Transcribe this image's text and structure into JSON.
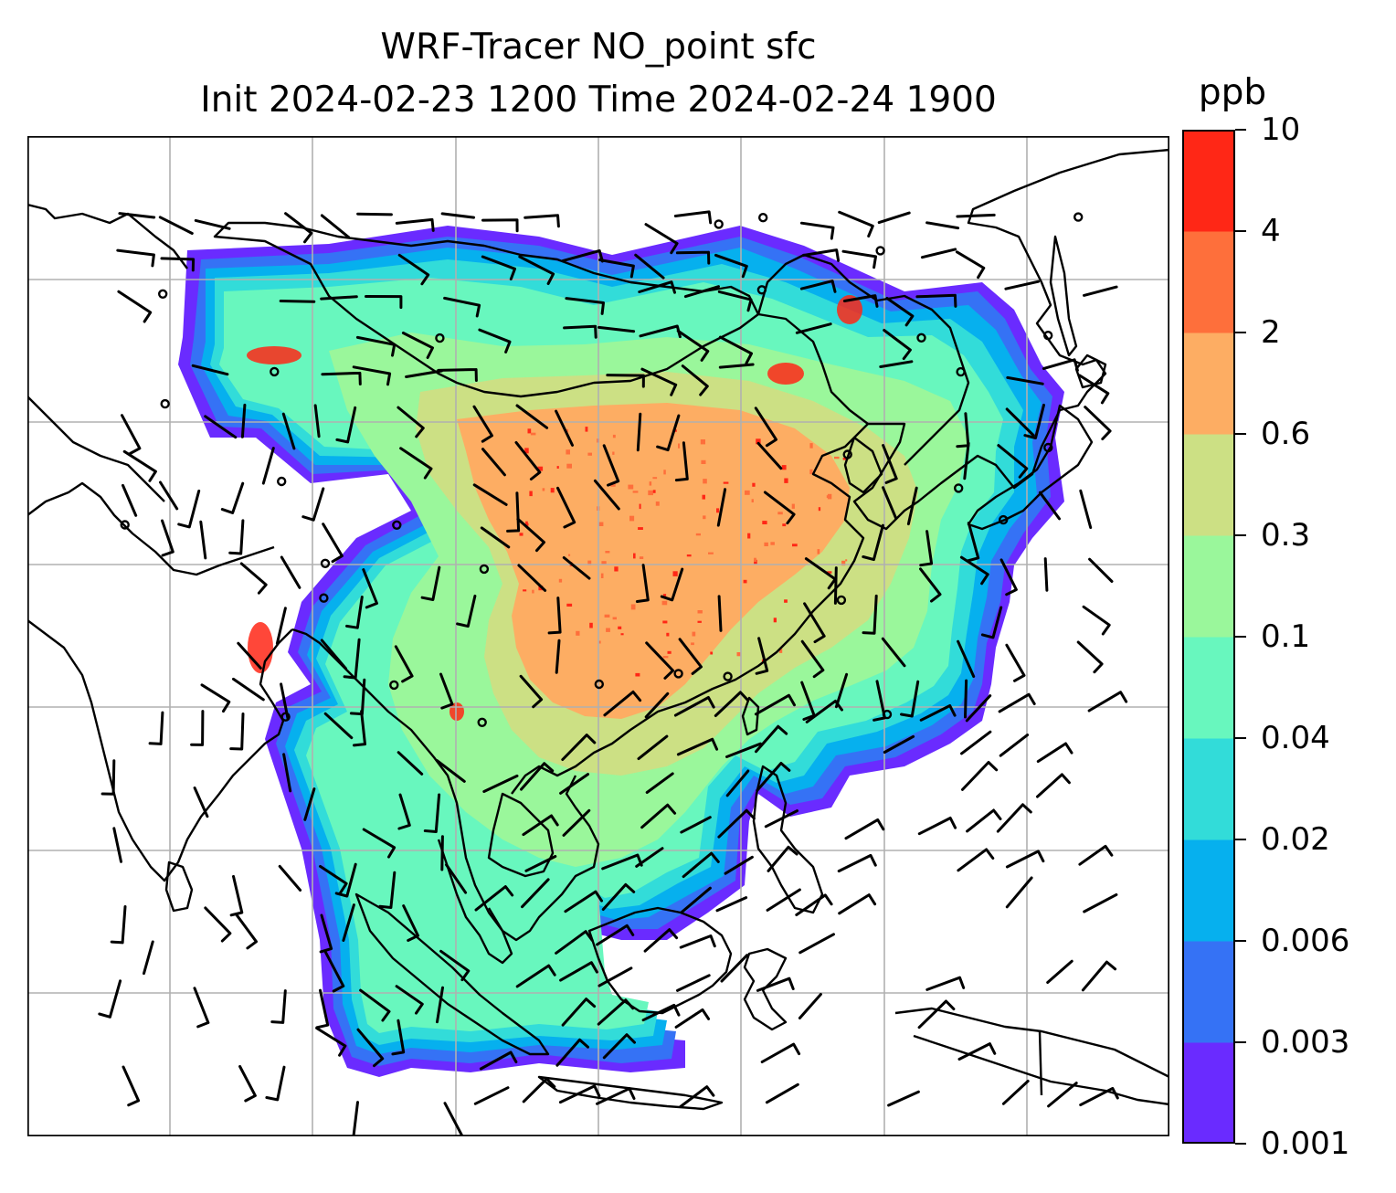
{
  "title": {
    "line1": "WRF-Tracer NO_point sfc",
    "line2": "Init 2024-02-23 1200 Time 2024-02-24 1900"
  },
  "colorbar": {
    "unit": "ppb",
    "levels": [
      "0.001",
      "0.003",
      "0.006",
      "0.02",
      "0.04",
      "0.1",
      "0.3",
      "0.6",
      "2",
      "4",
      "10"
    ],
    "colors": [
      "#6a2bff",
      "#3572f5",
      "#06b0ee",
      "#32dcd9",
      "#68f7be",
      "#9af79b",
      "#cce084",
      "#fdad63",
      "#fe6f3b",
      "#ff2716"
    ]
  },
  "map": {
    "projection": "lat-lon",
    "gridlines": true,
    "overlay": "wind barbs",
    "plume_colors_by_level": {
      "low": "#6a2bff",
      "background": "#3572f5",
      "ocean_edge": "#06b0ee",
      "coastal": "#32dcd9",
      "moderate": "#68f7be",
      "inland": "#9af79b",
      "elevated": "#cce084",
      "high": "#fdad63",
      "very_high": "#fe6f3b",
      "peak": "#ff2716"
    }
  }
}
